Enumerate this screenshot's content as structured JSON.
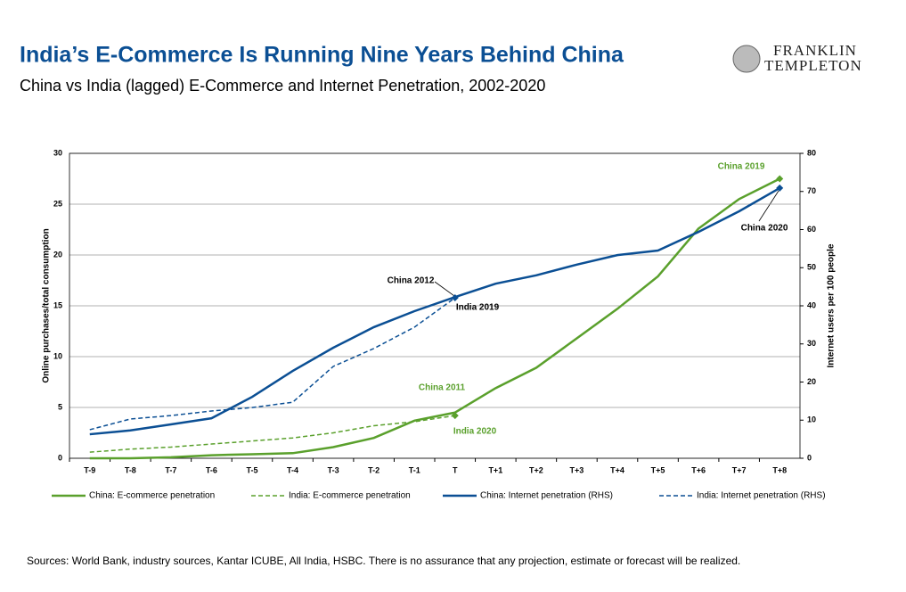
{
  "chart_data": {
    "type": "line",
    "title": "India’s E-Commerce Is Running Nine Years Behind China",
    "subtitle": "China vs India (lagged) E-Commerce and Internet Penetration, 2002-2020",
    "logo": [
      "FRANKLIN",
      "TEMPLETON"
    ],
    "source": "Sources:  World Bank, industry sources, Kantar ICUBE, All India, HSBC. There is no assurance that any projection, estimate or forecast will be realized.",
    "ylabel": "Online purchases/total consumption",
    "y2label": "Internet users per 100 people",
    "categories": [
      "T-9",
      "T-8",
      "T-7",
      "T-6",
      "T-5",
      "T-4",
      "T-3",
      "T-2",
      "T-1",
      "T",
      "T+1",
      "T+2",
      "T+3",
      "T+4",
      "T+5",
      "T+6",
      "T+7",
      "T+8"
    ],
    "ylim": [
      0,
      30
    ],
    "yticks": [
      0,
      5,
      10,
      15,
      20,
      25,
      30
    ],
    "y2lim": [
      0,
      80
    ],
    "y2ticks": [
      0,
      10,
      20,
      30,
      40,
      50,
      60,
      70,
      80
    ],
    "grid": true,
    "series": [
      {
        "name": "China: E-commerce penetration",
        "color": "#5aa02c",
        "linestyle": "solid",
        "axis": "y",
        "values": [
          0,
          0,
          0.1,
          0.3,
          0.4,
          0.5,
          1.1,
          2.0,
          3.7,
          4.5,
          6.9,
          8.9,
          11.8,
          14.7,
          17.9,
          22.6,
          25.5,
          27.5
        ]
      },
      {
        "name": "India: E-commerce penetration",
        "color": "#5aa02c",
        "linestyle": "dashed",
        "axis": "y",
        "values": [
          0.6,
          0.9,
          1.1,
          1.4,
          1.7,
          2.0,
          2.5,
          3.2,
          3.6,
          4.2,
          null,
          null,
          null,
          null,
          null,
          null,
          null,
          null
        ]
      },
      {
        "name": "China: Internet penetration (RHS)",
        "color": "#0b4f94",
        "linestyle": "solid",
        "axis": "y2",
        "values": [
          6.3,
          7.3,
          8.9,
          10.5,
          16.1,
          22.9,
          29,
          34.4,
          38.6,
          42.3,
          45.8,
          48,
          50.8,
          53.3,
          54.5,
          59.4,
          64.8,
          70.9
        ]
      },
      {
        "name": "India: Internet penetration (RHS)",
        "color": "#0b4f94",
        "linestyle": "dashed",
        "axis": "y2",
        "values": [
          7.5,
          10.3,
          11.2,
          12.4,
          13.3,
          14.7,
          24.1,
          28.8,
          34.4,
          42.1,
          null,
          null,
          null,
          null,
          null,
          null,
          null,
          null
        ]
      }
    ],
    "annotations": [
      {
        "text": "China 2019",
        "color": "#5aa02c"
      },
      {
        "text": "China 2020",
        "color": "#000000"
      },
      {
        "text": "China 2012",
        "color": "#000000"
      },
      {
        "text": "India 2019",
        "color": "#000000"
      },
      {
        "text": "China 2011",
        "color": "#5aa02c"
      },
      {
        "text": "India 2020",
        "color": "#5aa02c"
      }
    ]
  }
}
